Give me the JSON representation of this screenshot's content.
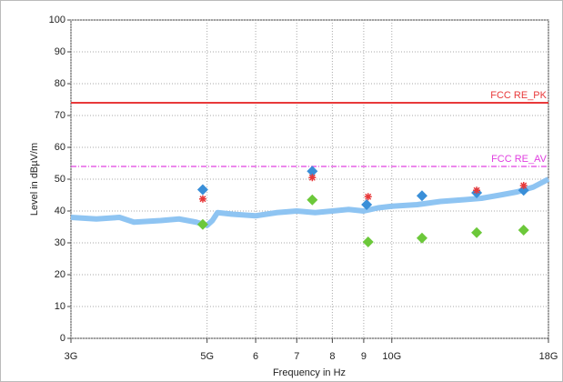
{
  "chart_data": {
    "type": "line",
    "x_label": "Frequency in Hz",
    "y_label": "Level in dBµV/m",
    "x_scale": "log",
    "grid": true,
    "xlim": [
      3,
      18
    ],
    "ylim": [
      0,
      100
    ],
    "xticks": [
      {
        "value": 3,
        "label": "3G"
      },
      {
        "value": 5,
        "label": "5G"
      },
      6,
      7,
      8,
      9,
      {
        "value": 10,
        "label": "10G"
      },
      {
        "value": 18,
        "label": "18G"
      }
    ],
    "yticks": [
      0,
      10,
      20,
      30,
      40,
      50,
      60,
      70,
      80,
      90,
      100
    ],
    "series": [
      {
        "name": "FCC RE_PK",
        "color": "#e8393a",
        "style": "solid",
        "x": [
          3,
          18
        ],
        "values": [
          74,
          74
        ]
      },
      {
        "name": "FCC RE_AV",
        "color": "#e040e0",
        "style": "dashdot",
        "x": [
          3,
          18
        ],
        "values": [
          54,
          54
        ]
      },
      {
        "color": "#8ec4f2",
        "style": "trace",
        "x": [
          3,
          3.3,
          3.6,
          3.8,
          4.2,
          4.5,
          4.8,
          5.0,
          5.1,
          5.2,
          5.5,
          6,
          6.5,
          7,
          7.5,
          8,
          8.5,
          9,
          9.5,
          10,
          11,
          12,
          13,
          14,
          15,
          16,
          17,
          18
        ],
        "values": [
          38,
          37.5,
          38,
          36.5,
          37,
          37.5,
          36.5,
          35.5,
          37,
          39.5,
          39,
          38.5,
          39.5,
          40,
          39.5,
          40,
          40.5,
          40,
          41,
          41.5,
          42,
          43,
          43.5,
          44,
          45,
          46,
          47.5,
          50
        ]
      },
      {
        "color": "#3a8fd8",
        "marker": "diamond",
        "x": [
          4.92,
          7.42,
          9.1,
          11.2,
          13.75,
          16.4
        ],
        "values": [
          46.7,
          52.5,
          42,
          44.8,
          45.7,
          46.5
        ]
      },
      {
        "color": "#e8393a",
        "marker": "star",
        "x": [
          4.92,
          7.42,
          9.15,
          13.75,
          16.4
        ],
        "values": [
          43.8,
          50.5,
          44.5,
          46.5,
          48
        ]
      },
      {
        "color": "#6cc83a",
        "marker": "diamond",
        "x": [
          4.92,
          7.42,
          9.15,
          11.2,
          13.75,
          16.4
        ],
        "values": [
          35.8,
          43.5,
          30.3,
          31.5,
          33.2,
          34
        ]
      }
    ]
  }
}
